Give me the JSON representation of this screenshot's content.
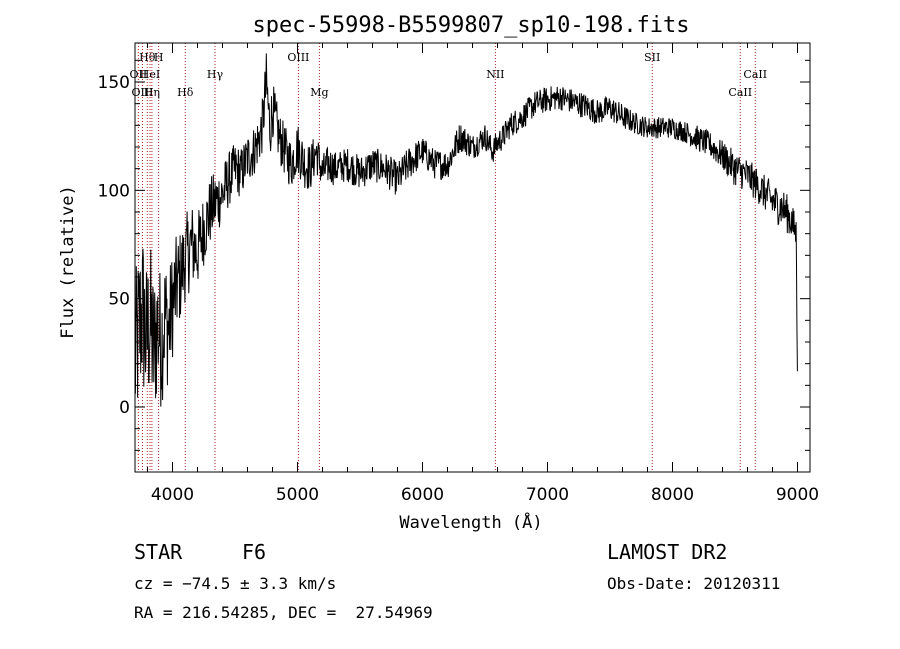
{
  "chart_data": {
    "type": "line",
    "title": "spec-55998-B5599807_sp10-198.fits",
    "xlabel": "Wavelength (Å)",
    "ylabel": "Flux (relative)",
    "xlim": [
      3700,
      9100
    ],
    "ylim": [
      -30,
      168
    ],
    "xticks": [
      4000,
      5000,
      6000,
      7000,
      8000,
      9000
    ],
    "yticks": [
      0,
      50,
      100,
      150
    ],
    "grid": false,
    "series": [
      {
        "x": [
          3700,
          3730,
          3760,
          3790,
          3820,
          3850,
          3880,
          3910,
          3940,
          3970,
          4000,
          4030,
          4060,
          4100,
          4150,
          4200,
          4250,
          4300,
          4350,
          4400,
          4450,
          4500,
          4550,
          4600,
          4650,
          4700,
          4720,
          4750,
          4780,
          4800,
          4850,
          4900,
          4950,
          5000,
          5050,
          5100,
          5150,
          5200,
          5250,
          5300,
          5400,
          5500,
          5600,
          5700,
          5800,
          5900,
          6000,
          6100,
          6200,
          6300,
          6400,
          6500,
          6560,
          6600,
          6650,
          6700,
          6800,
          6900,
          7000,
          7100,
          7200,
          7300,
          7400,
          7500,
          7600,
          7700,
          7800,
          7900,
          8000,
          8100,
          8200,
          8300,
          8400,
          8500,
          8600,
          8700,
          8800,
          8900,
          8950,
          8990,
          9000
        ],
        "y": [
          20,
          35,
          45,
          30,
          40,
          25,
          38,
          30,
          42,
          35,
          48,
          55,
          60,
          68,
          75,
          72,
          82,
          90,
          95,
          98,
          105,
          110,
          108,
          115,
          118,
          125,
          130,
          150,
          128,
          138,
          125,
          118,
          112,
          120,
          113,
          110,
          118,
          108,
          112,
          110,
          112,
          108,
          112,
          110,
          105,
          113,
          118,
          112,
          112,
          125,
          120,
          125,
          118,
          122,
          125,
          130,
          134,
          140,
          142,
          143,
          141,
          139,
          136,
          138,
          134,
          131,
          129,
          129,
          129,
          127,
          124,
          121,
          116,
          110,
          107,
          101,
          95,
          91,
          86,
          80,
          10
        ],
        "noise": [
          40,
          40,
          40,
          38,
          38,
          36,
          34,
          32,
          30,
          28,
          26,
          24,
          22,
          20,
          20,
          18,
          17,
          16,
          15,
          14,
          13,
          12,
          12,
          12,
          12,
          12,
          13,
          14,
          14,
          13,
          12,
          12,
          12,
          12,
          12,
          11,
          10,
          9,
          9,
          8,
          8,
          8,
          8,
          8,
          8,
          8,
          7,
          7,
          7,
          7,
          6,
          6,
          6,
          6,
          6,
          6,
          6,
          6,
          6,
          6,
          6,
          6,
          6,
          6,
          6,
          5,
          5,
          5,
          5,
          5,
          6,
          6,
          7,
          8,
          8,
          8,
          9,
          9,
          9,
          8,
          0
        ]
      }
    ],
    "lines": [
      {
        "label": "Hθ",
        "x": 3798,
        "row": 0
      },
      {
        "label": "H",
        "x": 3889,
        "row": 0
      },
      {
        "label": "OII",
        "x": 3727,
        "row": 1
      },
      {
        "label": "HeI",
        "x": 3820,
        "row": 1
      },
      {
        "label": "OIII",
        "x": 3760,
        "row": 2
      },
      {
        "label": "Hη",
        "x": 3835,
        "row": 2
      },
      {
        "label": "Hδ",
        "x": 4102,
        "row": 2
      },
      {
        "label": "Hγ",
        "x": 4340,
        "row": 1
      },
      {
        "label": "OIII",
        "x": 5007,
        "row": 0
      },
      {
        "label": "Mg",
        "x": 5175,
        "row": 2
      },
      {
        "label": "NII",
        "x": 6583,
        "row": 1
      },
      {
        "label": "SII",
        "x": 7838,
        "row": 0
      },
      {
        "label": "CaII",
        "x": 8542,
        "row": 2
      },
      {
        "label": "CaII",
        "x": 8662,
        "row": 1
      }
    ],
    "colors": {
      "spectrum": "#000000",
      "line_marker": "#b22222",
      "axes": "#000000"
    }
  },
  "info": {
    "object_type": "STAR",
    "subclass": "F6",
    "survey": "LAMOST DR2",
    "cz": "cz = −74.5 ± 3.3 km/s",
    "obs_date": "Obs-Date: 20120311",
    "coords": "RA = 216.54285, DEC =  27.54969"
  }
}
